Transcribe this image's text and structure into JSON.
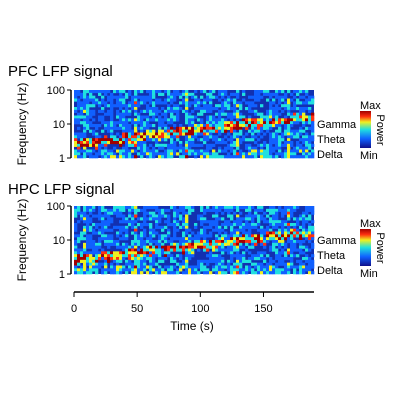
{
  "chart_data": [
    {
      "type": "heatmap",
      "title": "PFC LFP signal",
      "ylabel": "Frequency (Hz)",
      "yscale": "log",
      "ylim": [
        1,
        100
      ],
      "yticks": [
        "1",
        "10",
        "100"
      ],
      "bands": [
        "Gamma",
        "Theta",
        "Delta"
      ],
      "colorbar": {
        "label": "Power",
        "max": "Max",
        "min": "Min",
        "colors": [
          "#10108a",
          "#1060ff",
          "#20e0e0",
          "#f0f020",
          "#ff3010",
          "#a00000"
        ]
      }
    },
    {
      "type": "heatmap",
      "title": "HPC LFP signal",
      "ylabel": "Frequency (Hz)",
      "yscale": "log",
      "ylim": [
        1,
        100
      ],
      "yticks": [
        "1",
        "10",
        "100"
      ],
      "bands": [
        "Gamma",
        "Theta",
        "Delta"
      ],
      "colorbar": {
        "label": "Power",
        "max": "Max",
        "min": "Min",
        "colors": [
          "#10108a",
          "#1060ff",
          "#20e0e0",
          "#f0f020",
          "#ff3010",
          "#a00000"
        ]
      }
    }
  ],
  "time_axis": {
    "label": "Time (s)",
    "xlim": [
      0,
      190
    ],
    "ticks": [
      0,
      50,
      100,
      150
    ],
    "tick_labels": [
      "0",
      "50",
      "100",
      "150"
    ]
  }
}
